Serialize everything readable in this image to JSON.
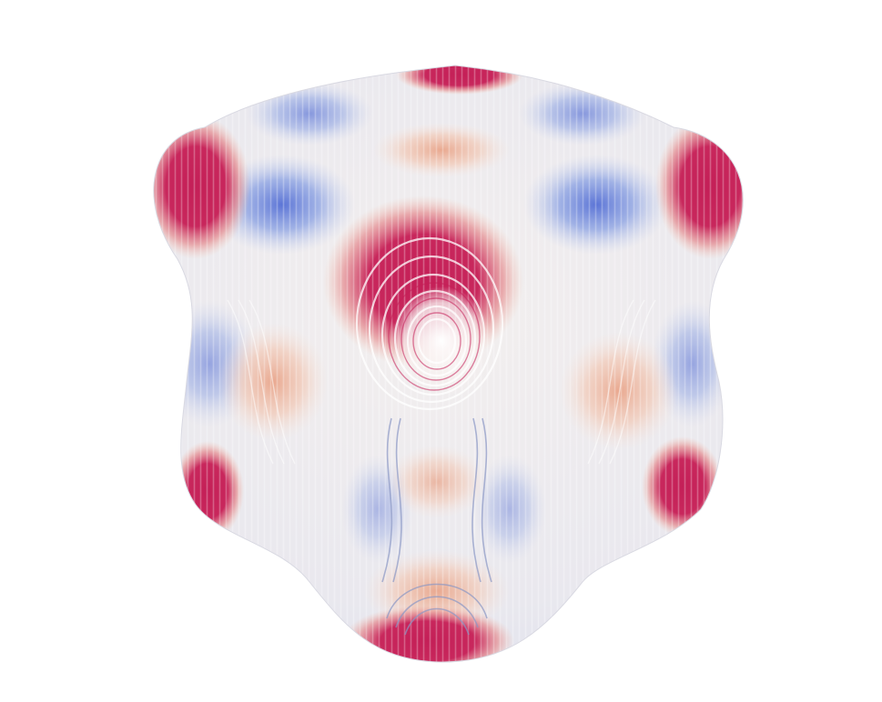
{
  "scene": {
    "subject": "surface-render",
    "background_color": "#ffffff",
    "colormap": {
      "low": "#3f5bd0",
      "mid_low": "#a9bce8",
      "mid": "#eeeeee",
      "mid_high": "#f1bba4",
      "high": "#c41f57"
    }
  }
}
